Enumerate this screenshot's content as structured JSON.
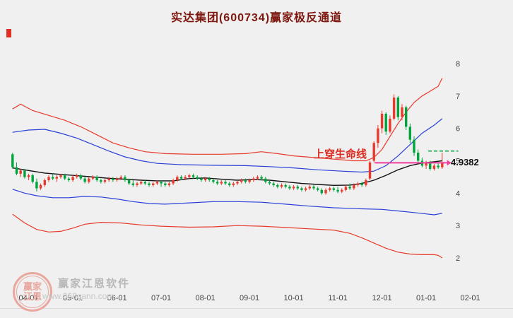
{
  "title": {
    "text": "实达集团(600734)赢家极反通道",
    "color": "#7e180f"
  },
  "annotation": {
    "text": "上穿生命线",
    "color": "#dc291e"
  },
  "price_label": {
    "text": "4.9382",
    "color": "#111111"
  },
  "watermark": {
    "brand": "赢家江恩软件",
    "url": "www.368gann.com",
    "logo_line1": "赢家",
    "logo_line2": "江恩",
    "color": "#b8b8b8",
    "logo_color": "#e9a89f"
  },
  "colors": {
    "background": "#f0f0f0",
    "up": "#e8392b",
    "down": "#00a43c",
    "band_red": "#e8392b",
    "band_blue": "#2840d8",
    "lifeline": "#111111",
    "pink": "#f03e9e",
    "axis_text": "#444444",
    "corner_mark": "#e03024"
  },
  "chart_data": {
    "type": "candlestick",
    "title": "实达集团(600734)赢家极反通道",
    "up_color": "#e8392b",
    "down_color": "#00a43c",
    "x_axis": {
      "ticks": [
        "04-01",
        "05-01",
        "06-01",
        "07-01",
        "08-01",
        "09-01",
        "10-01",
        "11-01",
        "12-01",
        "01-01",
        "02-01"
      ],
      "tick_slots": [
        4,
        15,
        26,
        37,
        48,
        59,
        70,
        81,
        92,
        103,
        114
      ],
      "total_slots": 110
    },
    "y_axis": {
      "ticks": [
        8,
        7,
        6,
        5,
        4,
        3,
        2
      ],
      "range": [
        1.8,
        8.6
      ],
      "side": "right"
    },
    "candles": [
      [
        5.2,
        5.25,
        4.75,
        4.8
      ],
      [
        4.8,
        4.95,
        4.55,
        4.6
      ],
      [
        4.6,
        4.75,
        4.5,
        4.7
      ],
      [
        4.7,
        4.75,
        4.45,
        4.5
      ],
      [
        4.5,
        4.6,
        4.4,
        4.55
      ],
      [
        4.55,
        4.6,
        4.3,
        4.35
      ],
      [
        4.35,
        4.45,
        4.05,
        4.15
      ],
      [
        4.15,
        4.3,
        4.1,
        4.25
      ],
      [
        4.25,
        4.45,
        4.2,
        4.4
      ],
      [
        4.4,
        4.55,
        4.35,
        4.5
      ],
      [
        4.5,
        4.6,
        4.4,
        4.45
      ],
      [
        4.45,
        4.55,
        4.35,
        4.5
      ],
      [
        4.5,
        4.6,
        4.45,
        4.55
      ],
      [
        4.55,
        4.6,
        4.4,
        4.45
      ],
      [
        4.45,
        4.5,
        4.35,
        4.4
      ],
      [
        4.4,
        4.55,
        4.35,
        4.5
      ],
      [
        4.5,
        4.6,
        4.45,
        4.55
      ],
      [
        4.55,
        4.6,
        4.4,
        4.45
      ],
      [
        4.45,
        4.5,
        4.3,
        4.35
      ],
      [
        4.35,
        4.5,
        4.3,
        4.45
      ],
      [
        4.45,
        4.55,
        4.4,
        4.5
      ],
      [
        4.5,
        4.55,
        4.35,
        4.4
      ],
      [
        4.4,
        4.45,
        4.3,
        4.35
      ],
      [
        4.35,
        4.45,
        4.3,
        4.4
      ],
      [
        4.4,
        4.5,
        4.35,
        4.45
      ],
      [
        4.45,
        4.5,
        4.35,
        4.4
      ],
      [
        4.4,
        4.5,
        4.35,
        4.45
      ],
      [
        4.45,
        4.55,
        4.4,
        4.5
      ],
      [
        4.5,
        4.55,
        4.35,
        4.4
      ],
      [
        4.4,
        4.45,
        4.25,
        4.3
      ],
      [
        4.3,
        4.4,
        4.2,
        4.25
      ],
      [
        4.25,
        4.35,
        4.2,
        4.3
      ],
      [
        4.3,
        4.4,
        4.25,
        4.35
      ],
      [
        4.35,
        4.4,
        4.25,
        4.3
      ],
      [
        4.3,
        4.35,
        4.2,
        4.25
      ],
      [
        4.25,
        4.35,
        4.2,
        4.3
      ],
      [
        4.3,
        4.4,
        4.25,
        4.35
      ],
      [
        4.35,
        4.4,
        4.2,
        4.3
      ],
      [
        4.3,
        4.35,
        4.2,
        4.25
      ],
      [
        4.25,
        4.35,
        4.2,
        4.3
      ],
      [
        4.3,
        4.45,
        4.25,
        4.4
      ],
      [
        4.4,
        4.55,
        4.35,
        4.5
      ],
      [
        4.5,
        4.55,
        4.4,
        4.45
      ],
      [
        4.45,
        4.55,
        4.4,
        4.5
      ],
      [
        4.5,
        4.6,
        4.45,
        4.55
      ],
      [
        4.55,
        4.6,
        4.45,
        4.5
      ],
      [
        4.5,
        4.55,
        4.4,
        4.45
      ],
      [
        4.45,
        4.5,
        4.35,
        4.4
      ],
      [
        4.4,
        4.5,
        4.35,
        4.45
      ],
      [
        4.45,
        4.5,
        4.35,
        4.4
      ],
      [
        4.4,
        4.45,
        4.3,
        4.35
      ],
      [
        4.35,
        4.4,
        4.25,
        4.3
      ],
      [
        4.3,
        4.4,
        4.25,
        4.35
      ],
      [
        4.35,
        4.4,
        4.25,
        4.3
      ],
      [
        4.3,
        4.35,
        4.2,
        4.25
      ],
      [
        4.25,
        4.35,
        4.2,
        4.3
      ],
      [
        4.3,
        4.4,
        4.25,
        4.35
      ],
      [
        4.35,
        4.45,
        4.3,
        4.4
      ],
      [
        4.4,
        4.45,
        4.3,
        4.35
      ],
      [
        4.35,
        4.45,
        4.3,
        4.4
      ],
      [
        4.4,
        4.5,
        4.35,
        4.45
      ],
      [
        4.45,
        4.55,
        4.4,
        4.5
      ],
      [
        4.5,
        4.55,
        4.4,
        4.45
      ],
      [
        4.45,
        4.5,
        4.3,
        4.35
      ],
      [
        4.35,
        4.4,
        4.25,
        4.3
      ],
      [
        4.3,
        4.35,
        4.2,
        4.25
      ],
      [
        4.25,
        4.3,
        4.15,
        4.2
      ],
      [
        4.2,
        4.3,
        4.15,
        4.25
      ],
      [
        4.25,
        4.3,
        4.15,
        4.2
      ],
      [
        4.2,
        4.25,
        4.1,
        4.15
      ],
      [
        4.15,
        4.25,
        4.1,
        4.2
      ],
      [
        4.2,
        4.25,
        4.1,
        4.15
      ],
      [
        4.15,
        4.2,
        4.05,
        4.1
      ],
      [
        4.1,
        4.2,
        4.05,
        4.15
      ],
      [
        4.15,
        4.25,
        4.1,
        4.2
      ],
      [
        4.2,
        4.25,
        4.1,
        4.15
      ],
      [
        4.15,
        4.2,
        4.05,
        4.1
      ],
      [
        4.1,
        4.15,
        3.95,
        4.0
      ],
      [
        4.0,
        4.15,
        3.95,
        4.1
      ],
      [
        4.1,
        4.2,
        4.05,
        4.15
      ],
      [
        4.15,
        4.2,
        4.05,
        4.1
      ],
      [
        4.1,
        4.2,
        4.0,
        4.05
      ],
      [
        4.05,
        4.15,
        4.0,
        4.1
      ],
      [
        4.1,
        4.25,
        4.05,
        4.2
      ],
      [
        4.2,
        4.3,
        4.1,
        4.15
      ],
      [
        4.15,
        4.3,
        4.1,
        4.25
      ],
      [
        4.25,
        4.35,
        4.2,
        4.3
      ],
      [
        4.3,
        4.35,
        4.2,
        4.25
      ],
      [
        4.25,
        4.45,
        4.2,
        4.4
      ],
      [
        4.45,
        5.0,
        4.4,
        4.95
      ],
      [
        5.0,
        5.6,
        4.95,
        5.55
      ],
      [
        5.55,
        6.1,
        5.4,
        6.0
      ],
      [
        6.0,
        6.55,
        5.85,
        6.45
      ],
      [
        6.45,
        6.5,
        5.8,
        5.9
      ],
      [
        5.9,
        6.4,
        5.85,
        6.3
      ],
      [
        6.3,
        7.05,
        6.25,
        6.95
      ],
      [
        6.95,
        7.0,
        6.25,
        6.35
      ],
      [
        6.35,
        6.75,
        6.25,
        6.65
      ],
      [
        6.65,
        6.7,
        5.95,
        6.05
      ],
      [
        6.05,
        6.15,
        5.55,
        5.65
      ],
      [
        5.65,
        5.75,
        5.15,
        5.25
      ],
      [
        5.25,
        5.35,
        4.9,
        5.0
      ],
      [
        5.0,
        5.1,
        4.8,
        4.85
      ],
      [
        4.85,
        5.0,
        4.75,
        4.95
      ],
      [
        4.95,
        5.0,
        4.7,
        4.75
      ],
      [
        4.75,
        4.9,
        4.7,
        4.85
      ],
      [
        4.85,
        4.95,
        4.75,
        4.8
      ],
      [
        4.8,
        5.25,
        4.75,
        4.94
      ]
    ],
    "bands": {
      "upper_red": {
        "color": "#e8392b",
        "width": 1.2,
        "points": [
          [
            0,
            6.6
          ],
          [
            2,
            6.75
          ],
          [
            5,
            6.55
          ],
          [
            9,
            6.4
          ],
          [
            13,
            6.25
          ],
          [
            17,
            6.05
          ],
          [
            21,
            5.8
          ],
          [
            25,
            5.55
          ],
          [
            29,
            5.4
          ],
          [
            33,
            5.28
          ],
          [
            38,
            5.22
          ],
          [
            45,
            5.2
          ],
          [
            52,
            5.2
          ],
          [
            58,
            5.22
          ],
          [
            62,
            5.28
          ],
          [
            66,
            5.22
          ],
          [
            70,
            5.15
          ],
          [
            75,
            5.1
          ],
          [
            80,
            5.05
          ],
          [
            85,
            5.0
          ],
          [
            88,
            5.0
          ],
          [
            90,
            5.1
          ],
          [
            92,
            5.35
          ],
          [
            94,
            5.75
          ],
          [
            96,
            6.15
          ],
          [
            98,
            6.5
          ],
          [
            100,
            6.8
          ],
          [
            102,
            7.0
          ],
          [
            104,
            7.15
          ],
          [
            106,
            7.3
          ],
          [
            107,
            7.55
          ]
        ]
      },
      "upper_blue": {
        "color": "#2840d8",
        "width": 1.2,
        "points": [
          [
            0,
            5.88
          ],
          [
            4,
            5.95
          ],
          [
            8,
            5.97
          ],
          [
            12,
            5.85
          ],
          [
            16,
            5.7
          ],
          [
            20,
            5.5
          ],
          [
            24,
            5.3
          ],
          [
            28,
            5.12
          ],
          [
            32,
            5.0
          ],
          [
            36,
            4.92
          ],
          [
            42,
            4.88
          ],
          [
            50,
            4.86
          ],
          [
            58,
            4.85
          ],
          [
            64,
            4.82
          ],
          [
            70,
            4.78
          ],
          [
            76,
            4.72
          ],
          [
            82,
            4.68
          ],
          [
            87,
            4.65
          ],
          [
            90,
            4.68
          ],
          [
            93,
            4.85
          ],
          [
            96,
            5.15
          ],
          [
            99,
            5.5
          ],
          [
            102,
            5.85
          ],
          [
            105,
            6.1
          ],
          [
            107,
            6.3
          ]
        ]
      },
      "lifeline": {
        "color": "#111111",
        "width": 1.4,
        "points": [
          [
            0,
            4.78
          ],
          [
            4,
            4.7
          ],
          [
            8,
            4.62
          ],
          [
            12,
            4.58
          ],
          [
            16,
            4.54
          ],
          [
            20,
            4.5
          ],
          [
            24,
            4.46
          ],
          [
            28,
            4.43
          ],
          [
            32,
            4.4
          ],
          [
            36,
            4.38
          ],
          [
            40,
            4.38
          ],
          [
            44,
            4.45
          ],
          [
            48,
            4.47
          ],
          [
            52,
            4.43
          ],
          [
            56,
            4.4
          ],
          [
            60,
            4.42
          ],
          [
            64,
            4.4
          ],
          [
            68,
            4.35
          ],
          [
            72,
            4.3
          ],
          [
            76,
            4.27
          ],
          [
            80,
            4.24
          ],
          [
            84,
            4.25
          ],
          [
            87,
            4.3
          ],
          [
            90,
            4.4
          ],
          [
            93,
            4.55
          ],
          [
            96,
            4.72
          ],
          [
            99,
            4.85
          ],
          [
            102,
            4.93
          ],
          [
            105,
            4.97
          ],
          [
            107,
            5.0
          ]
        ]
      },
      "lower_blue": {
        "color": "#2840d8",
        "width": 1.2,
        "points": [
          [
            0,
            4.12
          ],
          [
            3,
            4.0
          ],
          [
            6,
            3.92
          ],
          [
            10,
            3.86
          ],
          [
            14,
            3.86
          ],
          [
            18,
            3.9
          ],
          [
            22,
            3.88
          ],
          [
            26,
            3.82
          ],
          [
            30,
            3.74
          ],
          [
            34,
            3.68
          ],
          [
            38,
            3.66
          ],
          [
            44,
            3.7
          ],
          [
            50,
            3.74
          ],
          [
            56,
            3.74
          ],
          [
            62,
            3.72
          ],
          [
            68,
            3.66
          ],
          [
            74,
            3.6
          ],
          [
            80,
            3.55
          ],
          [
            86,
            3.52
          ],
          [
            92,
            3.5
          ],
          [
            96,
            3.45
          ],
          [
            100,
            3.4
          ],
          [
            103,
            3.36
          ],
          [
            105,
            3.33
          ],
          [
            107,
            3.38
          ]
        ]
      },
      "lower_red": {
        "color": "#e8392b",
        "width": 1.2,
        "points": [
          [
            0,
            3.35
          ],
          [
            3,
            3.08
          ],
          [
            6,
            2.88
          ],
          [
            9,
            2.8
          ],
          [
            12,
            2.82
          ],
          [
            15,
            2.92
          ],
          [
            18,
            3.04
          ],
          [
            22,
            3.1
          ],
          [
            27,
            3.08
          ],
          [
            32,
            3.02
          ],
          [
            37,
            2.98
          ],
          [
            44,
            2.95
          ],
          [
            50,
            2.96
          ],
          [
            56,
            3.0
          ],
          [
            62,
            2.98
          ],
          [
            68,
            2.94
          ],
          [
            74,
            2.9
          ],
          [
            80,
            2.86
          ],
          [
            84,
            2.76
          ],
          [
            87,
            2.62
          ],
          [
            90,
            2.46
          ],
          [
            93,
            2.3
          ],
          [
            96,
            2.18
          ],
          [
            99,
            2.12
          ],
          [
            102,
            2.1
          ],
          [
            105,
            2.1
          ],
          [
            106,
            2.08
          ],
          [
            107,
            2.0
          ]
        ]
      }
    },
    "overlays": {
      "annotation": {
        "text": "上穿生命线",
        "color": "#dc291e"
      },
      "pink_price_line": {
        "value": 4.9382,
        "from_slot": 90.2,
        "to_slot": 108.2,
        "color": "#f03e9e"
      },
      "green_dashed_line": {
        "value": 5.3,
        "from_slot": 103.5,
        "to_slot": 111,
        "color": "#00a43c"
      },
      "price_label": {
        "text": "4.9382",
        "value": 4.9382
      }
    }
  }
}
